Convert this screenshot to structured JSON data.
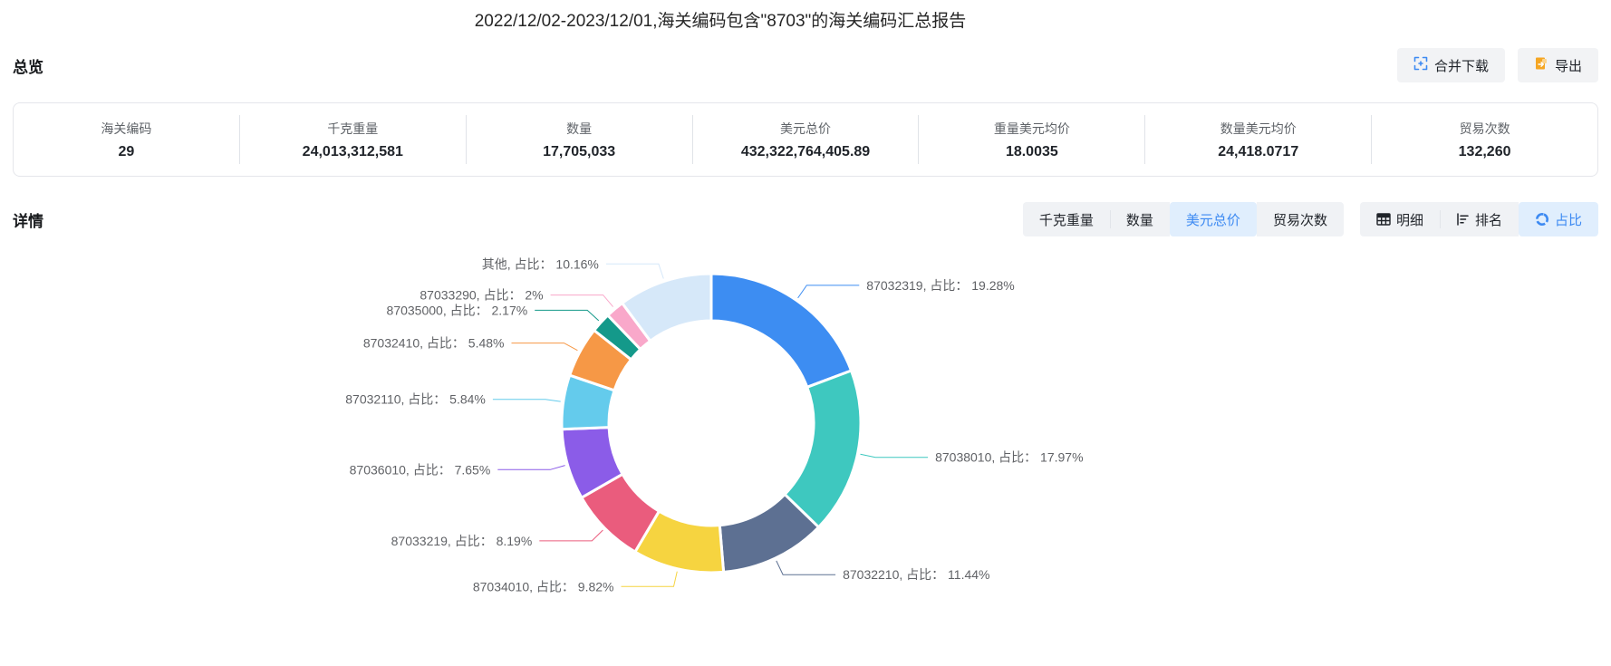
{
  "page_title": "2022/12/02-2023/12/01,海关编码包含\"8703\"的海关编码汇总报告",
  "overview": {
    "section_title": "总览",
    "buttons": {
      "merge_download": {
        "label": "合并下载",
        "icon": "merge-grid-icon",
        "icon_color": "#3d8af2"
      },
      "export": {
        "label": "导出",
        "icon": "export-file-icon",
        "icon_color": "#f5a623"
      }
    },
    "stats": [
      {
        "label": "海关编码",
        "value": "29"
      },
      {
        "label": "千克重量",
        "value": "24,013,312,581"
      },
      {
        "label": "数量",
        "value": "17,705,033"
      },
      {
        "label": "美元总价",
        "value": "432,322,764,405.89"
      },
      {
        "label": "重量美元均价",
        "value": "18.0035"
      },
      {
        "label": "数量美元均价",
        "value": "24,418.0717"
      },
      {
        "label": "贸易次数",
        "value": "132,260"
      }
    ]
  },
  "details": {
    "section_title": "详情",
    "metric_tabs": [
      {
        "label": "千克重量",
        "active": false
      },
      {
        "label": "数量",
        "active": false
      },
      {
        "label": "美元总价",
        "active": true
      },
      {
        "label": "贸易次数",
        "active": false
      }
    ],
    "view_tabs": [
      {
        "label": "明细",
        "icon": "table-icon",
        "active": false
      },
      {
        "label": "排名",
        "icon": "ranking-icon",
        "active": false
      },
      {
        "label": "占比",
        "icon": "pie-icon",
        "active": true
      }
    ],
    "active_colors": {
      "text": "#3d8af2",
      "background": "#e0eefd"
    }
  },
  "chart_data": {
    "type": "pie",
    "subtype": "donut",
    "title": "",
    "start_angle_deg_from_top": 0,
    "clockwise": true,
    "legend": "none",
    "label_format": "{name}, 占比： {value}%",
    "series": [
      {
        "name": "87032319",
        "value": 19.28,
        "color": "#3d8df2"
      },
      {
        "name": "87038010",
        "value": 17.97,
        "color": "#3ec8bf"
      },
      {
        "name": "87032210",
        "value": 11.44,
        "color": "#5d7092"
      },
      {
        "name": "87034010",
        "value": 9.82,
        "color": "#f6d440"
      },
      {
        "name": "87033219",
        "value": 8.19,
        "color": "#ea5c7d"
      },
      {
        "name": "87036010",
        "value": 7.65,
        "color": "#8b5ce8"
      },
      {
        "name": "87032110",
        "value": 5.84,
        "color": "#64cbec"
      },
      {
        "name": "87032410",
        "value": 5.48,
        "color": "#f69846"
      },
      {
        "name": "87035000",
        "value": 2.17,
        "color": "#14998a"
      },
      {
        "name": "87033290",
        "value": 2,
        "color": "#f9a8ca"
      },
      {
        "name": "其他",
        "value": 10.16,
        "color": "#d6e8f9"
      }
    ]
  }
}
